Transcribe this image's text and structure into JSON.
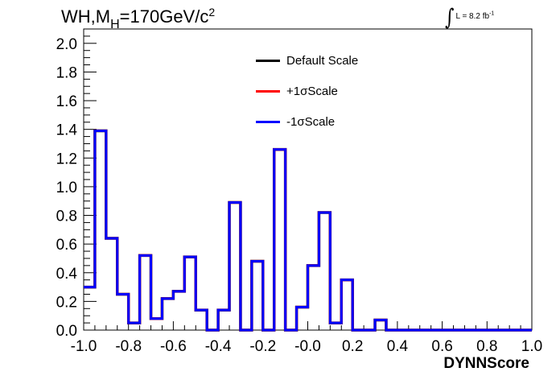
{
  "title": {
    "prefix": "WH,M",
    "sub": "H",
    "mid": "=170GeV/c",
    "sup": "2"
  },
  "lumi": {
    "symbol": "∫",
    "text": "L = 8.2 fb",
    "sup": "-1"
  },
  "legend": [
    {
      "label": "Default Scale",
      "color": "#000000"
    },
    {
      "label": "+1σScale",
      "color": "#ff0000"
    },
    {
      "label": "-1σScale",
      "color": "#0000ff"
    }
  ],
  "chart_data": {
    "type": "histogram",
    "xlabel": "DYNNScore",
    "ylabel": "",
    "xlim": [
      -1.0,
      1.0
    ],
    "ylim": [
      0.0,
      2.1
    ],
    "xticks": [
      "-1.0",
      "-0.8",
      "-0.6",
      "-0.4",
      "-0.2",
      "-0.0",
      "0.2",
      "0.4",
      "0.6",
      "0.8",
      "1.0"
    ],
    "yticks": [
      "0.0",
      "0.2",
      "0.4",
      "0.6",
      "0.8",
      "1.0",
      "1.2",
      "1.4",
      "1.6",
      "1.8",
      "2.0"
    ],
    "bin_edges": [
      -1.0,
      -0.95,
      -0.9,
      -0.85,
      -0.8,
      -0.75,
      -0.7,
      -0.65,
      -0.6,
      -0.55,
      -0.5,
      -0.45,
      -0.4,
      -0.35,
      -0.3,
      -0.25,
      -0.2,
      -0.15,
      -0.1,
      -0.05,
      0.0,
      0.05,
      0.1,
      0.15,
      0.2,
      0.25,
      0.3,
      0.35,
      0.4,
      0.45,
      0.5,
      0.55,
      0.6,
      0.65,
      0.7,
      0.75,
      0.8,
      0.85,
      0.9,
      0.95,
      1.0
    ],
    "series": [
      {
        "name": "Default Scale",
        "color": "#000000",
        "values": [
          0.3,
          1.39,
          0.64,
          0.25,
          0.05,
          0.52,
          0.08,
          0.22,
          0.27,
          0.51,
          0.14,
          0.0,
          0.14,
          0.89,
          0.0,
          0.48,
          0.0,
          1.26,
          0.0,
          0.16,
          0.45,
          0.82,
          0.05,
          0.35,
          0.0,
          0.0,
          0.07,
          0.0,
          0.0,
          0.0,
          0.0,
          0.0,
          0.0,
          0.0,
          0.0,
          0.0,
          0.0,
          0.0,
          0.0,
          0.0
        ]
      },
      {
        "name": "+1σScale",
        "color": "#ff0000",
        "values": [
          0.3,
          1.39,
          0.64,
          0.25,
          0.05,
          0.52,
          0.08,
          0.22,
          0.27,
          0.51,
          0.14,
          0.0,
          0.14,
          0.89,
          0.0,
          0.48,
          0.0,
          1.26,
          0.0,
          0.16,
          0.45,
          0.82,
          0.05,
          0.35,
          0.0,
          0.0,
          0.07,
          0.0,
          0.0,
          0.0,
          0.0,
          0.0,
          0.0,
          0.0,
          0.0,
          0.0,
          0.0,
          0.0,
          0.0,
          0.0
        ]
      },
      {
        "name": "-1σScale",
        "color": "#0000ff",
        "values": [
          0.3,
          1.39,
          0.64,
          0.25,
          0.05,
          0.52,
          0.08,
          0.22,
          0.27,
          0.51,
          0.14,
          0.0,
          0.14,
          0.89,
          0.0,
          0.48,
          0.0,
          1.26,
          0.0,
          0.16,
          0.45,
          0.82,
          0.05,
          0.35,
          0.0,
          0.0,
          0.07,
          0.0,
          0.0,
          0.0,
          0.0,
          0.0,
          0.0,
          0.0,
          0.0,
          0.0,
          0.0,
          0.0,
          0.0,
          0.0
        ]
      }
    ],
    "grid": false,
    "legend_position": "top-center"
  }
}
